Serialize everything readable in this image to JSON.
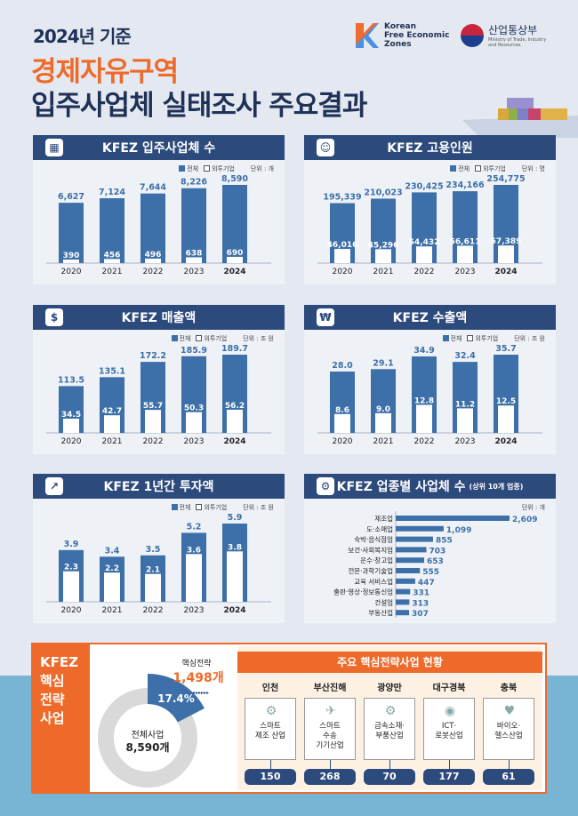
{
  "header": {
    "subtitle": "2024년 기준",
    "title_line1": "경제자유구역",
    "title_line2": "입주사업체 실태조사 주요결과",
    "logo_kfez": [
      "Korean",
      "Free Economic",
      "Zones"
    ],
    "logo_ministry": "산업통상부",
    "logo_ministry_sub": [
      "Ministry of Trade, Industry",
      "and Resources"
    ]
  },
  "colors": {
    "navy": "#2c4a7c",
    "bar": "#3d70a8",
    "orange": "#ee6a2a",
    "label": "#3d70a8"
  },
  "legend": {
    "total": "전체",
    "foreign": "외투기업"
  },
  "chart_data": [
    {
      "type": "bar",
      "title": "KFEZ 입주사업체 수",
      "icon": "building-icon",
      "unit": "단위 : 개",
      "categories": [
        "2020",
        "2021",
        "2022",
        "2023",
        "2024"
      ],
      "series": [
        {
          "name": "전체",
          "values": [
            6627,
            7124,
            7644,
            8226,
            8590
          ],
          "labels": [
            "6,627",
            "7,124",
            "7,644",
            "8,226",
            "8,590"
          ]
        },
        {
          "name": "외투기업",
          "values": [
            390,
            456,
            496,
            638,
            690
          ],
          "labels": [
            "390",
            "456",
            "496",
            "638",
            "690"
          ]
        }
      ]
    },
    {
      "type": "bar",
      "title": "KFEZ 고용인원",
      "icon": "people-icon",
      "unit": "단위 : 명",
      "categories": [
        "2020",
        "2021",
        "2022",
        "2023",
        "2024"
      ],
      "series": [
        {
          "name": "전체",
          "values": [
            195339,
            210023,
            230425,
            234166,
            254775
          ],
          "labels": [
            "195,339",
            "210,023",
            "230,425",
            "234,166",
            "254,775"
          ]
        },
        {
          "name": "외투기업",
          "values": [
            46016,
            45296,
            54432,
            56611,
            57389
          ],
          "labels": [
            "46,016",
            "45,296",
            "54,432",
            "56,611",
            "57,389"
          ]
        }
      ]
    },
    {
      "type": "bar",
      "title": "KFEZ 매출액",
      "icon": "money-icon",
      "unit": "단위 : 조 원",
      "categories": [
        "2020",
        "2021",
        "2022",
        "2023",
        "2024"
      ],
      "series": [
        {
          "name": "전체",
          "values": [
            113.5,
            135.1,
            172.2,
            185.9,
            189.7
          ],
          "labels": [
            "113.5",
            "135.1",
            "172.2",
            "185.9",
            "189.7"
          ]
        },
        {
          "name": "외투기업",
          "values": [
            34.5,
            42.7,
            55.7,
            50.3,
            56.2
          ],
          "labels": [
            "34.5",
            "42.7",
            "55.7",
            "50.3",
            "56.2"
          ]
        }
      ]
    },
    {
      "type": "bar",
      "title": "KFEZ 수출액",
      "icon": "export-icon",
      "unit": "단위 : 조 원",
      "categories": [
        "2020",
        "2021",
        "2022",
        "2023",
        "2024"
      ],
      "series": [
        {
          "name": "전체",
          "values": [
            28.0,
            29.1,
            34.9,
            32.4,
            35.7
          ],
          "labels": [
            "28.0",
            "29.1",
            "34.9",
            "32.4",
            "35.7"
          ]
        },
        {
          "name": "외투기업",
          "values": [
            8.6,
            9.0,
            12.8,
            11.2,
            12.5
          ],
          "labels": [
            "8.6",
            "9.0",
            "12.8",
            "11.2",
            "12.5"
          ]
        }
      ]
    },
    {
      "type": "bar",
      "title": "KFEZ 1년간 투자액",
      "icon": "investment-icon",
      "unit": "단위 : 조 원",
      "categories": [
        "2020",
        "2021",
        "2022",
        "2023",
        "2024"
      ],
      "series": [
        {
          "name": "전체",
          "values": [
            3.9,
            3.4,
            3.5,
            5.2,
            5.9
          ],
          "labels": [
            "3.9",
            "3.4",
            "3.5",
            "5.2",
            "5.9"
          ]
        },
        {
          "name": "외투기업",
          "values": [
            2.3,
            2.2,
            2.1,
            3.6,
            3.8
          ],
          "labels": [
            "2.3",
            "2.2",
            "2.1",
            "3.6",
            "3.8"
          ]
        }
      ]
    },
    {
      "type": "hbar",
      "title": "KFEZ 업종별 사업체 수",
      "title_note": "(상위 10개 업종)",
      "icon": "gear-search-icon",
      "unit": "단위 : 개",
      "categories": [
        "제조업",
        "도·소매업",
        "숙박·음식점업",
        "보건·사회복지업",
        "운수·창고업",
        "전문·과학기술업",
        "교육 서비스업",
        "출판·영상·정보통신업",
        "건설업",
        "부동산업"
      ],
      "values": [
        2609,
        1099,
        855,
        703,
        653,
        555,
        447,
        331,
        313,
        307
      ],
      "labels": [
        "2,609",
        "1,099",
        "855",
        "703",
        "653",
        "555",
        "447",
        "331",
        "313",
        "307"
      ]
    },
    {
      "type": "pie",
      "title": "KFEZ 핵심 전략 사업",
      "title_lines": [
        "KFEZ",
        "핵심",
        "전략",
        "사업"
      ],
      "total_label": "전체사업",
      "total": "8,590개",
      "core_label": "핵심전략",
      "core": "1,498개",
      "core_share": 17.4,
      "core_share_label": "17.4%"
    }
  ],
  "core_projects": {
    "title": "주요 핵심전략사업 현황",
    "regions": [
      {
        "name": "인천",
        "field": [
          "스마트",
          "제조 산업"
        ],
        "count": "150",
        "icon": "robot-arm-icon"
      },
      {
        "name": "부산진해",
        "field": [
          "스마트",
          "수송",
          "기기산업"
        ],
        "count": "268",
        "icon": "drone-icon"
      },
      {
        "name": "광양만",
        "field": [
          "금속소재·",
          "부품산업"
        ],
        "count": "70",
        "icon": "gears-icon"
      },
      {
        "name": "대구경북",
        "field": [
          "ICT·",
          "로봇산업"
        ],
        "count": "177",
        "icon": "ai-head-icon"
      },
      {
        "name": "충북",
        "field": [
          "바이오·",
          "헬스산업"
        ],
        "count": "61",
        "icon": "heartbeat-icon"
      }
    ]
  }
}
